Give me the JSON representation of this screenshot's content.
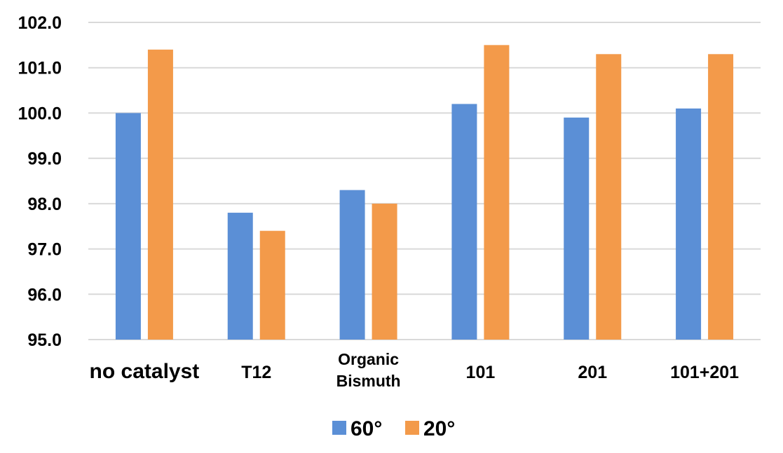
{
  "chart_data": {
    "type": "bar",
    "categories": [
      "no catalyst",
      "T12",
      "Organic Bismuth",
      "101",
      "201",
      "101+201"
    ],
    "category_lines": [
      [
        "no catalyst"
      ],
      [
        "T12"
      ],
      [
        "Organic",
        "Bismuth"
      ],
      [
        "101"
      ],
      [
        "201"
      ],
      [
        "101+201"
      ]
    ],
    "series": [
      {
        "name": "60°",
        "values": [
          100.0,
          97.8,
          98.3,
          100.2,
          99.9,
          100.1
        ],
        "color": "#5B8FD6"
      },
      {
        "name": "20°",
        "values": [
          101.4,
          97.4,
          98.0,
          101.5,
          101.3,
          101.3
        ],
        "color": "#F39A4A"
      }
    ],
    "ylim": [
      95.0,
      102.0
    ],
    "yticks": [
      "95.0",
      "96.0",
      "97.0",
      "98.0",
      "99.0",
      "100.0",
      "101.0",
      "102.0"
    ],
    "title": "",
    "xlabel": "",
    "ylabel": "",
    "grid": true,
    "legend_position": "bottom-center",
    "gridline_color": "#D9D9D9"
  }
}
